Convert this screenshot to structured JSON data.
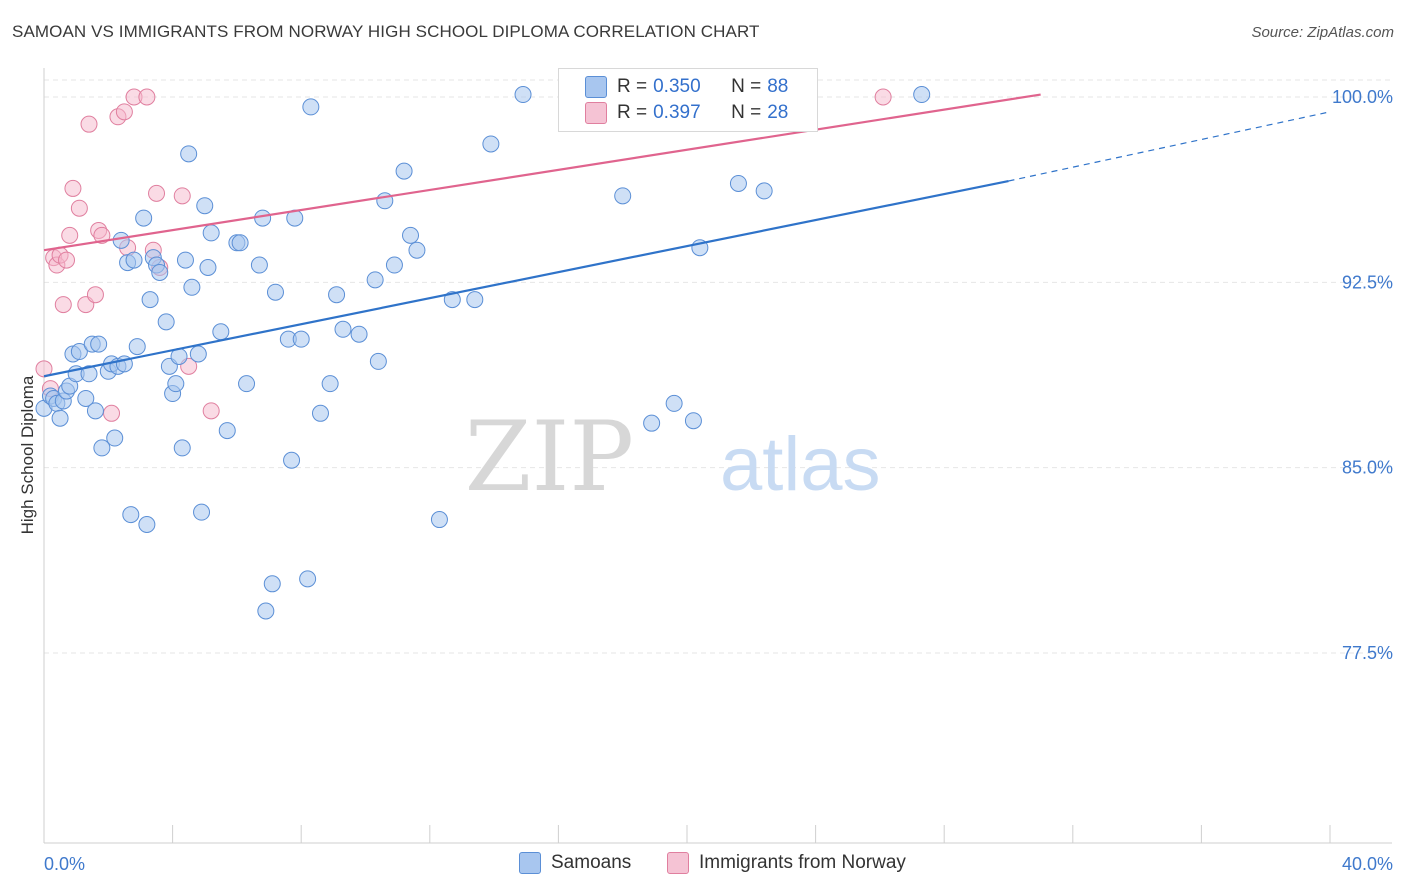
{
  "title": "SAMOAN VS IMMIGRANTS FROM NORWAY HIGH SCHOOL DIPLOMA CORRELATION CHART",
  "source": "Source: ZipAtlas.com",
  "watermark": {
    "zip": "ZIP",
    "atlas": "atlas"
  },
  "stats": [
    {
      "r_label": "R = ",
      "r_value": "0.350",
      "n_label": "N = ",
      "n_value": "88"
    },
    {
      "r_label": "R = ",
      "r_value": "0.397",
      "n_label": "N = ",
      "n_value": "28"
    }
  ],
  "colors": {
    "blue_fill": "#a8c6ef",
    "blue_stroke": "#5b8fd6",
    "blue_line": "#2f73c9",
    "pink_fill": "#f5b8cc",
    "pink_stroke": "#e07f9f",
    "pink_line": "#e0648e",
    "axis_text": "#3f79cc",
    "grid": "#e6e6e6"
  },
  "chart_data": {
    "type": "scatter",
    "title": "SAMOAN VS IMMIGRANTS FROM NORWAY HIGH SCHOOL DIPLOMA CORRELATION CHART",
    "xlabel": "",
    "ylabel": "High School Diploma",
    "xlim": [
      0,
      40
    ],
    "ylim": [
      70,
      100.8
    ],
    "x_tick_labels": [
      "0.0%",
      "40.0%"
    ],
    "y_ticks": [
      77.5,
      85.0,
      92.5,
      100.0
    ],
    "y_tick_labels": [
      "77.5%",
      "85.0%",
      "92.5%",
      "100.0%"
    ],
    "legend": [
      "Samoans",
      "Immigrants from Norway"
    ],
    "series": [
      {
        "name": "Samoans",
        "r": 0.35,
        "n": 88,
        "trend": {
          "x0": 0,
          "y0": 88.7,
          "x1": 30.0,
          "y1": 96.6,
          "dash_to_x": 40,
          "dash_to_y": 99.4
        },
        "points": [
          [
            0.0,
            87.4
          ],
          [
            0.2,
            87.9
          ],
          [
            0.3,
            87.8
          ],
          [
            0.4,
            87.6
          ],
          [
            0.5,
            87.0
          ],
          [
            0.6,
            87.7
          ],
          [
            0.7,
            88.1
          ],
          [
            0.8,
            88.3
          ],
          [
            0.9,
            89.6
          ],
          [
            1.0,
            88.8
          ],
          [
            1.1,
            89.7
          ],
          [
            1.3,
            87.8
          ],
          [
            1.4,
            88.8
          ],
          [
            1.5,
            90.0
          ],
          [
            1.6,
            87.3
          ],
          [
            1.7,
            90.0
          ],
          [
            1.8,
            85.8
          ],
          [
            2.0,
            88.9
          ],
          [
            2.1,
            89.2
          ],
          [
            2.2,
            86.2
          ],
          [
            2.3,
            89.1
          ],
          [
            2.4,
            94.2
          ],
          [
            2.5,
            89.2
          ],
          [
            2.6,
            93.3
          ],
          [
            2.7,
            83.1
          ],
          [
            2.8,
            93.4
          ],
          [
            2.9,
            89.9
          ],
          [
            3.1,
            95.1
          ],
          [
            3.2,
            82.7
          ],
          [
            3.3,
            91.8
          ],
          [
            3.4,
            93.5
          ],
          [
            3.5,
            93.2
          ],
          [
            3.6,
            92.9
          ],
          [
            3.8,
            90.9
          ],
          [
            3.9,
            89.1
          ],
          [
            4.0,
            88.0
          ],
          [
            4.1,
            88.4
          ],
          [
            4.2,
            89.5
          ],
          [
            4.3,
            85.8
          ],
          [
            4.4,
            93.4
          ],
          [
            4.5,
            97.7
          ],
          [
            4.6,
            92.3
          ],
          [
            4.8,
            89.6
          ],
          [
            4.9,
            83.2
          ],
          [
            5.0,
            95.6
          ],
          [
            5.1,
            93.1
          ],
          [
            5.2,
            94.5
          ],
          [
            5.5,
            90.5
          ],
          [
            5.7,
            86.5
          ],
          [
            6.0,
            94.1
          ],
          [
            6.1,
            94.1
          ],
          [
            6.3,
            88.4
          ],
          [
            6.7,
            93.2
          ],
          [
            6.8,
            95.1
          ],
          [
            6.9,
            79.2
          ],
          [
            7.1,
            80.3
          ],
          [
            7.2,
            92.1
          ],
          [
            7.6,
            90.2
          ],
          [
            7.7,
            85.3
          ],
          [
            7.8,
            95.1
          ],
          [
            8.0,
            90.2
          ],
          [
            8.2,
            80.5
          ],
          [
            8.3,
            99.6
          ],
          [
            8.6,
            87.2
          ],
          [
            8.9,
            88.4
          ],
          [
            9.1,
            92.0
          ],
          [
            9.3,
            90.6
          ],
          [
            9.8,
            90.4
          ],
          [
            10.3,
            92.6
          ],
          [
            10.4,
            89.3
          ],
          [
            10.6,
            95.8
          ],
          [
            10.9,
            93.2
          ],
          [
            11.2,
            97.0
          ],
          [
            11.4,
            94.4
          ],
          [
            11.6,
            93.8
          ],
          [
            12.3,
            82.9
          ],
          [
            12.7,
            91.8
          ],
          [
            13.4,
            91.8
          ],
          [
            13.9,
            98.1
          ],
          [
            14.9,
            100.1
          ],
          [
            18.0,
            96.0
          ],
          [
            18.9,
            86.8
          ],
          [
            19.6,
            87.6
          ],
          [
            20.2,
            86.9
          ],
          [
            20.4,
            93.9
          ],
          [
            21.6,
            96.5
          ],
          [
            22.4,
            96.2
          ],
          [
            27.3,
            100.1
          ]
        ]
      },
      {
        "name": "Immigrants from Norway",
        "r": 0.397,
        "n": 28,
        "trend": {
          "x0": 0,
          "y0": 93.8,
          "x1": 31.0,
          "y1": 100.1
        },
        "points": [
          [
            0.0,
            89.0
          ],
          [
            0.2,
            88.2
          ],
          [
            0.3,
            93.5
          ],
          [
            0.4,
            93.2
          ],
          [
            0.5,
            93.6
          ],
          [
            0.6,
            91.6
          ],
          [
            0.7,
            93.4
          ],
          [
            0.8,
            94.4
          ],
          [
            0.9,
            96.3
          ],
          [
            1.1,
            95.5
          ],
          [
            1.3,
            91.6
          ],
          [
            1.4,
            98.9
          ],
          [
            1.6,
            92.0
          ],
          [
            1.7,
            94.6
          ],
          [
            1.8,
            94.4
          ],
          [
            2.1,
            87.2
          ],
          [
            2.3,
            99.2
          ],
          [
            2.5,
            99.4
          ],
          [
            2.6,
            93.9
          ],
          [
            2.8,
            100.0
          ],
          [
            3.2,
            100.0
          ],
          [
            3.4,
            93.8
          ],
          [
            3.5,
            96.1
          ],
          [
            3.6,
            93.1
          ],
          [
            4.3,
            96.0
          ],
          [
            4.5,
            89.1
          ],
          [
            5.2,
            87.3
          ],
          [
            26.1,
            100.0
          ]
        ]
      }
    ]
  }
}
